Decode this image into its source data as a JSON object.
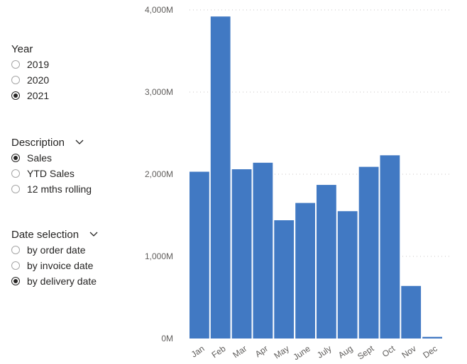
{
  "slicers": {
    "year": {
      "title": "Year",
      "options": [
        {
          "label": "2019",
          "selected": false
        },
        {
          "label": "2020",
          "selected": false
        },
        {
          "label": "2021",
          "selected": true
        }
      ]
    },
    "description": {
      "title": "Description",
      "icon": "chevron-down-icon",
      "options": [
        {
          "label": "Sales",
          "selected": true
        },
        {
          "label": "YTD Sales",
          "selected": false
        },
        {
          "label": "12 mths rolling",
          "selected": false
        }
      ]
    },
    "date_selection": {
      "title": "Date selection",
      "icon": "chevron-down-icon",
      "options": [
        {
          "label": "by order date",
          "selected": false
        },
        {
          "label": "by invoice date",
          "selected": false
        },
        {
          "label": "by delivery date",
          "selected": true
        }
      ]
    }
  },
  "chart_data": {
    "type": "bar",
    "categories": [
      "Jan",
      "Feb",
      "Mar",
      "Apr",
      "May",
      "June",
      "July",
      "Aug",
      "Sept",
      "Oct",
      "Nov",
      "Dec"
    ],
    "values": [
      2030,
      3920,
      2060,
      2140,
      1440,
      1650,
      1870,
      1550,
      2090,
      2230,
      640,
      20
    ],
    "y_ticks": [
      "0M",
      "1,000M",
      "2,000M",
      "3,000M",
      "4,000M"
    ],
    "y_tick_values": [
      0,
      1000,
      2000,
      3000,
      4000
    ],
    "ylim": [
      0,
      4000
    ],
    "grid": true,
    "bar_color": "#4179c3"
  }
}
